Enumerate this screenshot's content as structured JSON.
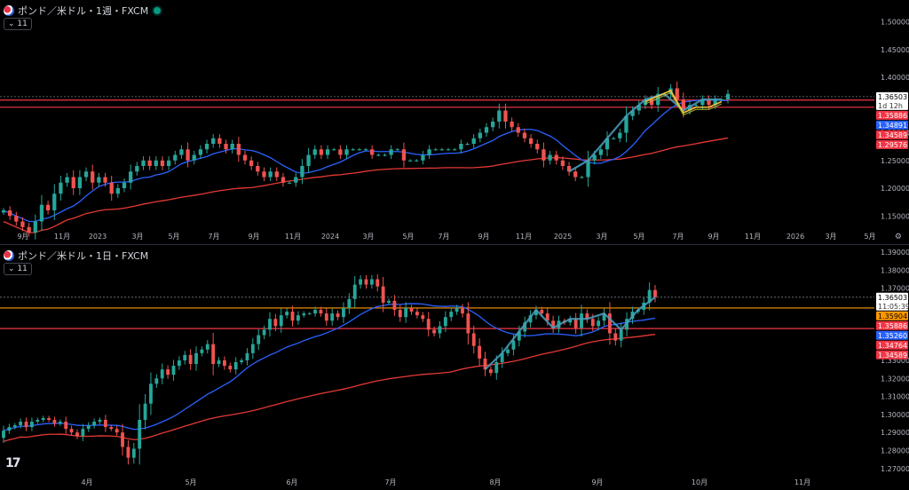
{
  "top": {
    "title": "ポンド／米ドル・1週・FXCM",
    "indicator_toggle": "11",
    "price_ticks": [
      "1.50000",
      "1.45000",
      "1.40000",
      "1.30000",
      "1.25000",
      "1.20000",
      "1.15000"
    ],
    "time_ticks": [
      "9月",
      "11月",
      "2023",
      "3月",
      "5月",
      "7月",
      "9月",
      "11月",
      "2024",
      "3月",
      "5月",
      "7月",
      "9月",
      "11月",
      "2025",
      "3月",
      "5月",
      "7月",
      "9月",
      "11月",
      "2026",
      "3月",
      "5月"
    ],
    "badges": [
      {
        "text": "1.36503",
        "sub": "1d 12h",
        "bg": "#ffffff",
        "fg": "#000000"
      },
      {
        "text": "1.35886",
        "bg": "#f23645",
        "fg": "#ffffff"
      },
      {
        "text": "1.34891",
        "bg": "#2962ff",
        "fg": "#ffffff"
      },
      {
        "text": "1.34589",
        "bg": "#f23645",
        "fg": "#ffffff"
      },
      {
        "text": "1.29576",
        "bg": "#f23645",
        "fg": "#ffffff"
      }
    ]
  },
  "bottom": {
    "title": "ポンド／米ドル・1日・FXCM",
    "indicator_toggle": "11",
    "price_ticks": [
      "1.39000",
      "1.38000",
      "1.37000",
      "1.33000",
      "1.32000",
      "1.31000",
      "1.30000",
      "1.29000",
      "1.28000",
      "1.27000"
    ],
    "time_ticks": [
      "4月",
      "5月",
      "6月",
      "7月",
      "8月",
      "9月",
      "10月",
      "11月"
    ],
    "badges": [
      {
        "text": "1.36503",
        "sub": "11:05:39",
        "bg": "#ffffff",
        "fg": "#000000"
      },
      {
        "text": "1.35904",
        "bg": "#ff9800",
        "fg": "#000000"
      },
      {
        "text": "1.35886",
        "bg": "#f23645",
        "fg": "#ffffff"
      },
      {
        "text": "1.35260",
        "bg": "#2962ff",
        "fg": "#ffffff"
      },
      {
        "text": "1.34764",
        "bg": "#f23645",
        "fg": "#ffffff"
      },
      {
        "text": "1.34589",
        "bg": "#f23645",
        "fg": "#ffffff"
      }
    ]
  },
  "colors": {
    "up": "#26a69a",
    "down": "#ef5350",
    "ma_fast": "#2962ff",
    "ma_slow": "#e53935",
    "zigzag": "#4a9fc0",
    "pattern": "#f5c542",
    "pattern2": "#b8c93a",
    "level_red": "#f23645",
    "level_orange": "#ff9800"
  },
  "chart_data": [
    {
      "type": "candlestick",
      "title": "ポンド／米ドル・1週・FXCM",
      "ylim": [
        1.12,
        1.52
      ],
      "x_ticks": [
        "9月",
        "11月",
        "2023",
        "3月",
        "5月",
        "7月",
        "9月",
        "11月",
        "2024",
        "3月",
        "5月",
        "7月",
        "9月",
        "11月",
        "2025",
        "3月",
        "5月",
        "7月",
        "9月",
        "11月",
        "2026",
        "3月",
        "5月"
      ],
      "horizontal_levels": [
        1.36503,
        1.35886,
        1.34589
      ],
      "last_price": 1.36503,
      "series_close": [
        1.16,
        1.15,
        1.14,
        1.13,
        1.12,
        1.14,
        1.17,
        1.16,
        1.19,
        1.21,
        1.22,
        1.2,
        1.22,
        1.23,
        1.21,
        1.22,
        1.21,
        1.19,
        1.2,
        1.21,
        1.23,
        1.24,
        1.25,
        1.24,
        1.25,
        1.24,
        1.25,
        1.26,
        1.27,
        1.25,
        1.26,
        1.27,
        1.28,
        1.29,
        1.28,
        1.27,
        1.28,
        1.26,
        1.25,
        1.24,
        1.23,
        1.22,
        1.23,
        1.22,
        1.21,
        1.21,
        1.22,
        1.24,
        1.26,
        1.27,
        1.26,
        1.27,
        1.27,
        1.26,
        1.27,
        1.27,
        1.27,
        1.27,
        1.26,
        1.26,
        1.26,
        1.27,
        1.27,
        1.25,
        1.25,
        1.25,
        1.26,
        1.27,
        1.27,
        1.27,
        1.27,
        1.27,
        1.28,
        1.28,
        1.29,
        1.3,
        1.31,
        1.32,
        1.34,
        1.32,
        1.31,
        1.3,
        1.29,
        1.28,
        1.27,
        1.25,
        1.26,
        1.25,
        1.24,
        1.23,
        1.22,
        1.22,
        1.25,
        1.26,
        1.27,
        1.29,
        1.29,
        1.3,
        1.33,
        1.34,
        1.35,
        1.36,
        1.35,
        1.37,
        1.37,
        1.38,
        1.36,
        1.34,
        1.35,
        1.35,
        1.36,
        1.35,
        1.36,
        1.36,
        1.37
      ],
      "ma_fast_end": 1.34891,
      "ma_slow_end": 1.29576
    },
    {
      "type": "candlestick",
      "title": "ポンド／米ドル・1日・FXCM",
      "ylim": [
        1.265,
        1.392
      ],
      "x_ticks": [
        "4月",
        "5月",
        "6月",
        "7月",
        "8月",
        "9月",
        "10月",
        "11月"
      ],
      "horizontal_levels": [
        1.36503,
        1.35904,
        1.34764
      ],
      "last_price": 1.36503,
      "series_close": [
        1.291,
        1.293,
        1.294,
        1.296,
        1.293,
        1.296,
        1.297,
        1.298,
        1.297,
        1.295,
        1.296,
        1.292,
        1.29,
        1.288,
        1.292,
        1.294,
        1.296,
        1.297,
        1.293,
        1.292,
        1.29,
        1.282,
        1.276,
        1.281,
        1.297,
        1.306,
        1.317,
        1.32,
        1.325,
        1.322,
        1.327,
        1.33,
        1.333,
        1.328,
        1.334,
        1.336,
        1.339,
        1.328,
        1.33,
        1.327,
        1.325,
        1.329,
        1.33,
        1.334,
        1.339,
        1.344,
        1.347,
        1.353,
        1.349,
        1.355,
        1.357,
        1.352,
        1.355,
        1.356,
        1.356,
        1.358,
        1.356,
        1.352,
        1.356,
        1.354,
        1.359,
        1.364,
        1.372,
        1.375,
        1.372,
        1.375,
        1.371,
        1.362,
        1.363,
        1.358,
        1.354,
        1.359,
        1.357,
        1.355,
        1.353,
        1.347,
        1.345,
        1.349,
        1.354,
        1.357,
        1.359,
        1.356,
        1.345,
        1.338,
        1.331,
        1.325,
        1.323,
        1.329,
        1.334,
        1.336,
        1.341,
        1.346,
        1.351,
        1.355,
        1.358,
        1.356,
        1.352,
        1.348,
        1.352,
        1.351,
        1.353,
        1.348,
        1.356,
        1.353,
        1.349,
        1.352,
        1.356,
        1.345,
        1.341,
        1.347,
        1.353,
        1.357,
        1.358,
        1.362,
        1.369,
        1.365
      ],
      "ma_fast_end": 1.3526,
      "ma_slow_end": 1.34764
    }
  ]
}
